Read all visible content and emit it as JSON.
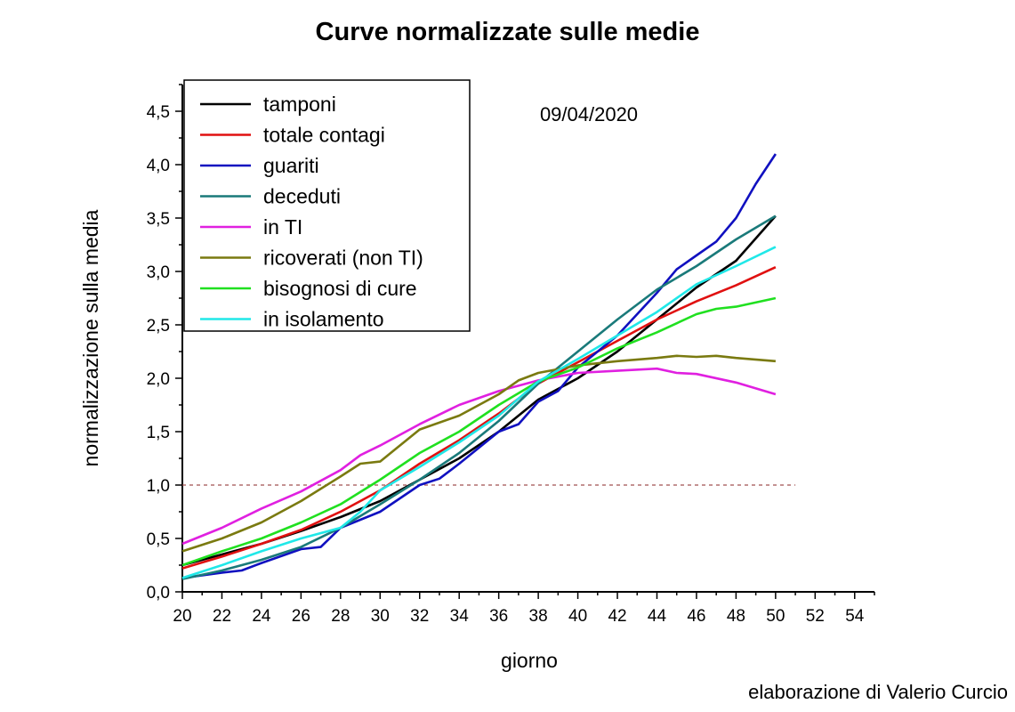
{
  "chart_data": {
    "type": "line",
    "title": "Curve normalizzate sulle medie",
    "annotation": "09/04/2020",
    "credit": "elaborazione di Valerio Curcio",
    "xlabel": "giorno",
    "ylabel": "normalizzazione sulla media",
    "xlim": [
      20,
      55
    ],
    "ylim": [
      0,
      4.75
    ],
    "xticks": [
      "20",
      "22",
      "24",
      "26",
      "28",
      "30",
      "32",
      "34",
      "36",
      "38",
      "40",
      "42",
      "44",
      "46",
      "48",
      "50",
      "52",
      "54"
    ],
    "yticks": [
      "0,0",
      "0,5",
      "1,0",
      "1,5",
      "2,0",
      "2,5",
      "3,0",
      "3,5",
      "4,0",
      "4,5"
    ],
    "reference_line": {
      "y": 1.0,
      "color": "#a05050",
      "style": "dashed"
    },
    "legend_position": "top-left",
    "series": [
      {
        "name": "tamponi",
        "color": "#000000",
        "x": [
          20,
          22,
          24,
          26,
          28,
          30,
          32,
          34,
          36,
          38,
          40,
          42,
          44,
          46,
          48,
          50
        ],
        "y": [
          0.25,
          0.35,
          0.45,
          0.57,
          0.7,
          0.85,
          1.05,
          1.25,
          1.5,
          1.8,
          2.0,
          2.25,
          2.55,
          2.85,
          3.1,
          3.52
        ]
      },
      {
        "name": "totale contagi",
        "color": "#e01010",
        "x": [
          20,
          22,
          24,
          26,
          28,
          30,
          32,
          34,
          36,
          38,
          40,
          42,
          44,
          46,
          48,
          50
        ],
        "y": [
          0.22,
          0.33,
          0.45,
          0.58,
          0.75,
          0.95,
          1.2,
          1.42,
          1.67,
          1.95,
          2.15,
          2.35,
          2.55,
          2.72,
          2.87,
          3.04
        ]
      },
      {
        "name": "guariti",
        "color": "#1010c0",
        "x": [
          20,
          22,
          23,
          24,
          26,
          27,
          28,
          30,
          32,
          33,
          34,
          36,
          37,
          38,
          39,
          40,
          42,
          44,
          45,
          46,
          47,
          48,
          49,
          50
        ],
        "y": [
          0.13,
          0.18,
          0.2,
          0.27,
          0.4,
          0.42,
          0.6,
          0.75,
          1.0,
          1.06,
          1.2,
          1.5,
          1.57,
          1.78,
          1.88,
          2.1,
          2.4,
          2.8,
          3.02,
          3.15,
          3.28,
          3.5,
          3.82,
          4.1
        ]
      },
      {
        "name": "deceduti",
        "color": "#1a7a7a",
        "x": [
          20,
          22,
          24,
          26,
          28,
          30,
          32,
          34,
          36,
          38,
          40,
          42,
          44,
          46,
          48,
          50
        ],
        "y": [
          0.12,
          0.2,
          0.3,
          0.42,
          0.6,
          0.82,
          1.05,
          1.3,
          1.6,
          1.95,
          2.25,
          2.55,
          2.83,
          3.05,
          3.3,
          3.52
        ]
      },
      {
        "name": "in TI",
        "color": "#e020e0",
        "x": [
          20,
          22,
          24,
          26,
          28,
          29,
          30,
          32,
          34,
          36,
          38,
          40,
          42,
          44,
          45,
          46,
          48,
          50
        ],
        "y": [
          0.45,
          0.6,
          0.78,
          0.94,
          1.14,
          1.28,
          1.37,
          1.57,
          1.75,
          1.88,
          1.98,
          2.05,
          2.07,
          2.09,
          2.05,
          2.04,
          1.96,
          1.85
        ]
      },
      {
        "name": "ricoverati (non TI)",
        "color": "#7a7a10",
        "x": [
          20,
          22,
          24,
          26,
          28,
          29,
          30,
          32,
          34,
          36,
          37,
          38,
          40,
          42,
          44,
          45,
          46,
          47,
          48,
          50
        ],
        "y": [
          0.38,
          0.5,
          0.65,
          0.85,
          1.08,
          1.2,
          1.22,
          1.52,
          1.65,
          1.85,
          1.98,
          2.05,
          2.12,
          2.16,
          2.19,
          2.21,
          2.2,
          2.21,
          2.19,
          2.16
        ]
      },
      {
        "name": "bisognosi di cure",
        "color": "#20e020",
        "x": [
          20,
          22,
          24,
          26,
          28,
          30,
          32,
          34,
          36,
          38,
          40,
          42,
          44,
          46,
          47,
          48,
          50
        ],
        "y": [
          0.25,
          0.38,
          0.5,
          0.65,
          0.82,
          1.05,
          1.3,
          1.5,
          1.75,
          1.97,
          2.1,
          2.28,
          2.43,
          2.6,
          2.65,
          2.67,
          2.75
        ]
      },
      {
        "name": "in isolamento",
        "color": "#20e8e8",
        "x": [
          20,
          22,
          24,
          26,
          28,
          29,
          30,
          32,
          34,
          36,
          38,
          40,
          42,
          44,
          46,
          48,
          50
        ],
        "y": [
          0.13,
          0.25,
          0.38,
          0.5,
          0.6,
          0.75,
          0.95,
          1.17,
          1.4,
          1.65,
          1.97,
          2.18,
          2.4,
          2.62,
          2.88,
          3.05,
          3.23
        ]
      }
    ]
  }
}
